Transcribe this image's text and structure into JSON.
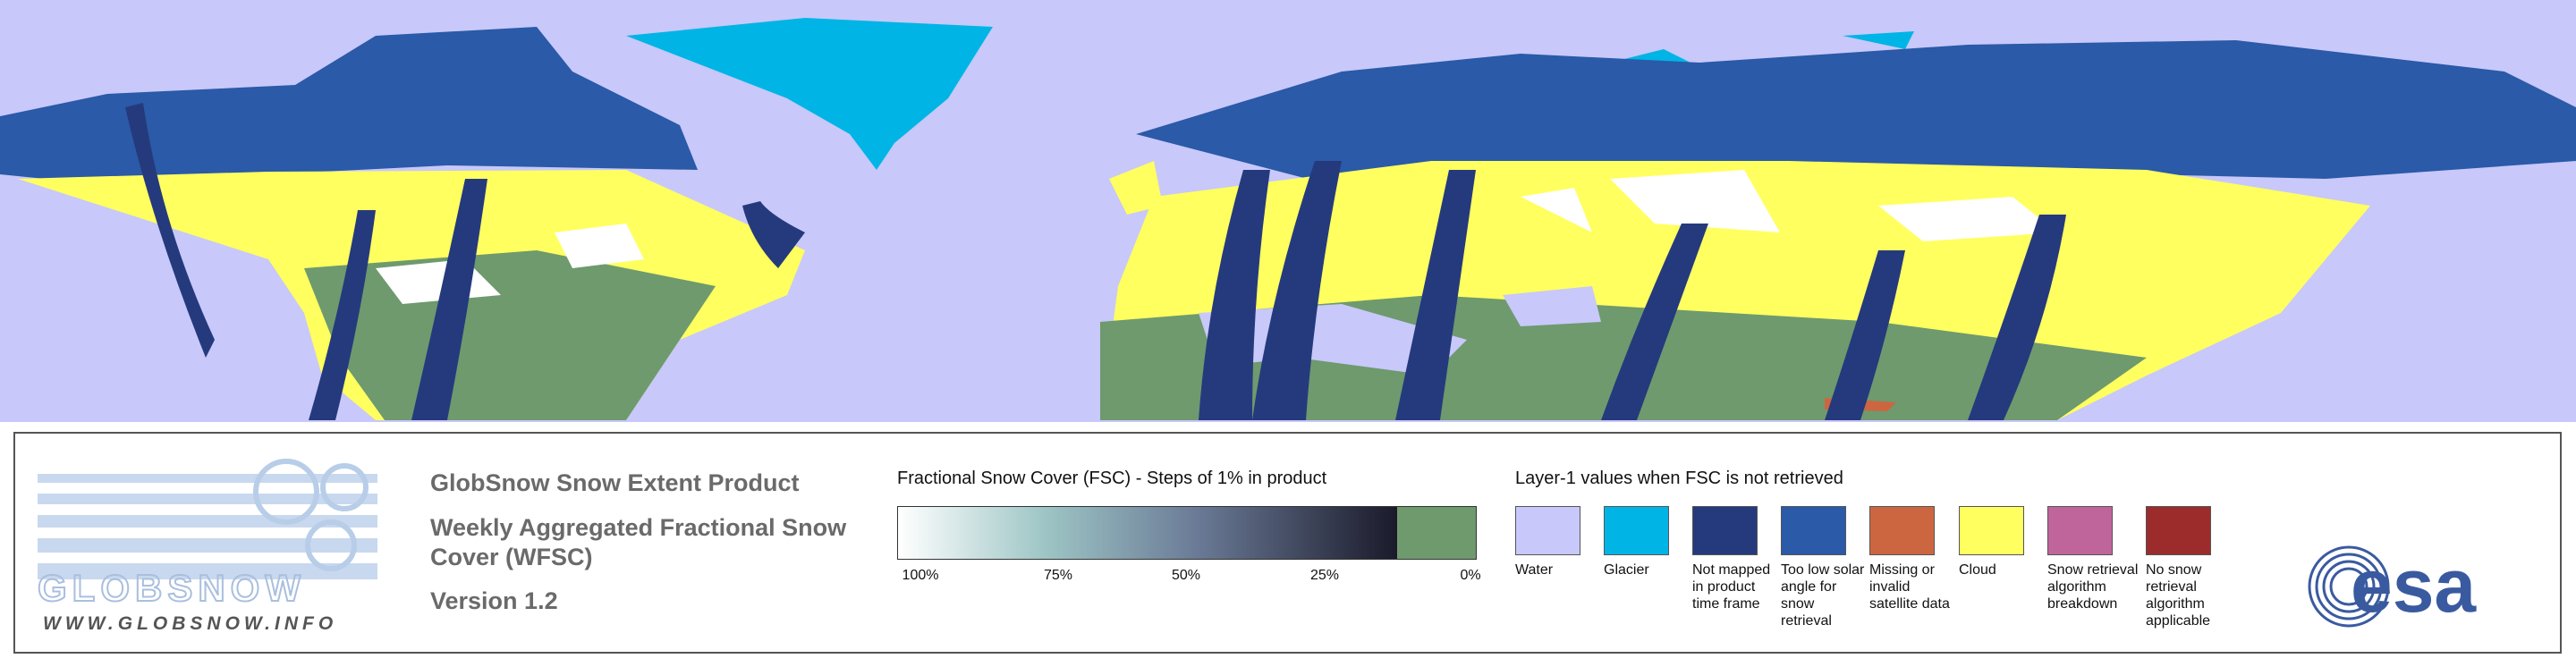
{
  "logo": {
    "name": "GLOBSNOW",
    "url": "WWW.GLOBSNOW.INFO"
  },
  "product": {
    "title": "GlobSnow Snow Extent Product",
    "subtitle": "Weekly Aggregated Fractional Snow Cover (WFSC)",
    "version": "Version 1.2"
  },
  "fsc_legend": {
    "title": "Fractional Snow Cover (FSC) - Steps of 1% in product",
    "labels": [
      "100%",
      "75%",
      "50%",
      "25%",
      "0%"
    ]
  },
  "layer1_legend": {
    "title": "Layer-1 values when FSC is not retrieved",
    "items": [
      {
        "label": "Water",
        "color": "#c8c8fa"
      },
      {
        "label": "Glacier",
        "color": "#00b4e6"
      },
      {
        "label": "Not mapped in product time frame",
        "color": "#253a7d"
      },
      {
        "label": "Too low solar angle for snow retrieval",
        "color": "#2a5aa8"
      },
      {
        "label": "Missing or invalid satellite data",
        "color": "#cc6640"
      },
      {
        "label": "Cloud",
        "color": "#ffff60"
      },
      {
        "label": "Snow retrieval algorithm breakdown",
        "color": "#c0649c"
      },
      {
        "label": "No snow retrieval algorithm applicable",
        "color": "#9c2c2c"
      }
    ]
  },
  "agency": "esa"
}
